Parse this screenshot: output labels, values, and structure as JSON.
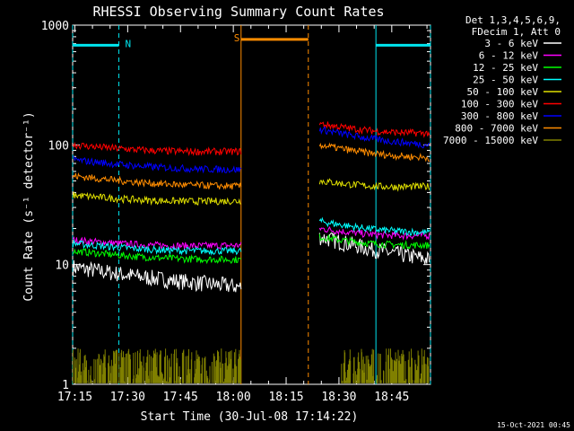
{
  "chart_data": {
    "type": "line",
    "title": "RHESSI Observing Summary Count Rates",
    "xlabel": "Start Time (30-Jul-08 17:14:22)",
    "ylabel": "Count Rate (s⁻¹ detector⁻¹)",
    "x_start_label": "17:14:22",
    "x_ticks": [
      "17:15",
      "17:30",
      "17:45",
      "18:00",
      "18:15",
      "18:30",
      "18:45"
    ],
    "x_tick_minutes": [
      15,
      30,
      45,
      60,
      75,
      90,
      105
    ],
    "xlim_minutes": [
      14.37,
      116.0
    ],
    "y_ticks": [
      "1",
      "10",
      "100",
      "1000"
    ],
    "y_tick_values": [
      1,
      10,
      100,
      1000
    ],
    "ylim": [
      1,
      1000
    ],
    "yscale": "log",
    "grid": false,
    "legend_placement": "outside-right",
    "legend_header": [
      "Det 1,3,4,5,6,9,",
      "FDecim 1, Att 0"
    ],
    "timestamp": "15-Oct-2021 00:45",
    "annotations": [
      {
        "label": "N",
        "color": "#00e5ee",
        "intervals": [
          [
            14.37,
            27.5
          ],
          [
            100.5,
            116.0
          ]
        ],
        "level": 680
      },
      {
        "label": "S",
        "color": "#ff8c00",
        "intervals": [
          [
            62.2,
            81.3
          ]
        ],
        "level": 760
      }
    ],
    "data_gap": [
      62.2,
      84.5
    ],
    "series": [
      {
        "name": "3 - 6 keV",
        "color": "#ffffff",
        "start": 9.5,
        "end": 6.5,
        "post_start": 17.0,
        "post_end": 11.0
      },
      {
        "name": "6 - 12 keV",
        "color": "#ff00ff",
        "start": 16.0,
        "end": 14.5,
        "post_start": 20.0,
        "post_end": 17.5
      },
      {
        "name": "12 - 25 keV",
        "color": "#00ff00",
        "start": 13.0,
        "end": 11.0,
        "post_start": 17.0,
        "post_end": 14.5
      },
      {
        "name": "25 - 50 keV",
        "color": "#00ffff",
        "start": 15.0,
        "end": 13.0,
        "post_start": 23.0,
        "post_end": 18.5
      },
      {
        "name": "50 - 100 keV",
        "color": "#e0e000",
        "start": 38.0,
        "end": 34.0,
        "post_start": 50.0,
        "post_end": 45.0
      },
      {
        "name": "100 - 300 keV",
        "color": "#ff0000",
        "start": 100.0,
        "end": 88.0,
        "post_start": 150.0,
        "post_end": 125.0
      },
      {
        "name": "300 - 800 keV",
        "color": "#0000ff",
        "start": 75.0,
        "end": 62.0,
        "post_start": 135.0,
        "post_end": 100.0
      },
      {
        "name": "800 - 7000 keV",
        "color": "#ff8c00",
        "start": 55.0,
        "end": 45.0,
        "post_start": 100.0,
        "post_end": 78.0
      },
      {
        "name": "7000 - 15000 keV",
        "color": "#808000",
        "start": 1.5,
        "end": 1.5,
        "post_start": 1.5,
        "post_end": 1.5
      }
    ]
  }
}
